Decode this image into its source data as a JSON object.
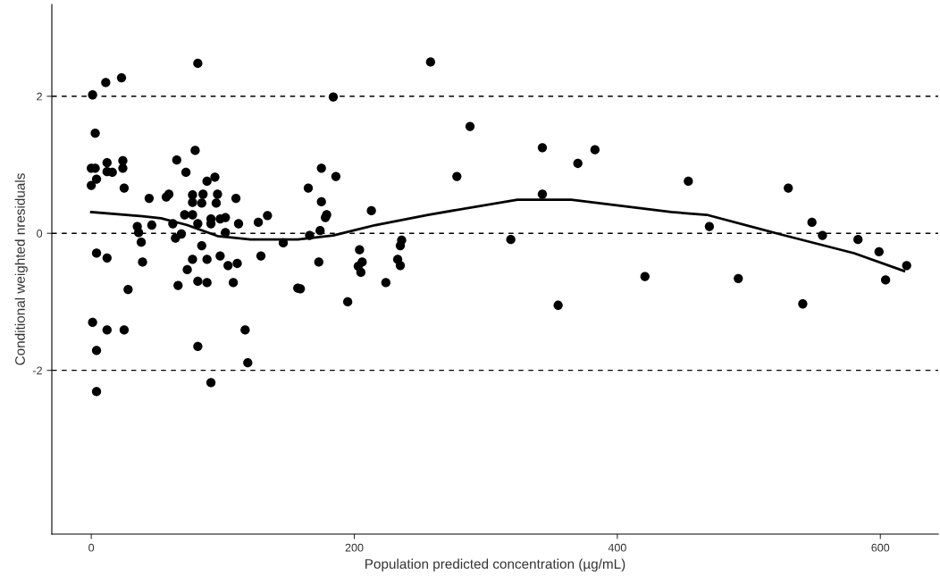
{
  "chart_data": {
    "type": "scatter",
    "xlabel": "Population predicted concentration (µg/mL)",
    "ylabel": "Conditional weighted nresiduals",
    "xlim": [
      -30,
      644
    ],
    "ylim": [
      -4.39,
      3.34
    ],
    "xticks": [
      0,
      200,
      400,
      600
    ],
    "yticks": [
      -2,
      0,
      2
    ],
    "grid": false,
    "legend": false,
    "marker": "circle",
    "ref_lines": [
      {
        "axis": "y",
        "value": 2,
        "color": "#000000",
        "line_style": "dashed"
      },
      {
        "axis": "y",
        "value": 0,
        "color": "#000000",
        "line_style": "dashed"
      },
      {
        "axis": "y",
        "value": -2,
        "color": "#000000",
        "line_style": "dashed"
      }
    ],
    "series": [
      {
        "color": "#000000",
        "x": [
          1,
          11,
          23,
          3,
          0,
          3,
          12,
          12,
          16,
          24,
          24,
          0,
          4,
          25,
          4,
          12,
          1,
          12,
          25,
          4,
          4,
          28,
          35,
          36,
          38,
          39,
          44,
          46,
          57,
          59,
          62,
          65,
          64,
          68.5,
          66,
          71,
          72,
          73,
          77,
          77,
          77,
          77,
          79,
          81,
          81,
          81,
          81,
          84,
          84,
          85,
          88,
          88,
          88,
          91,
          91,
          91,
          94,
          95,
          96,
          98,
          98,
          102,
          102,
          104,
          108,
          110,
          111,
          112,
          117,
          119,
          127,
          129,
          134,
          146,
          157,
          159,
          165,
          166,
          173,
          174,
          175,
          175,
          178,
          179,
          184,
          186,
          195,
          203,
          204,
          205,
          206,
          213,
          224,
          233,
          235,
          235,
          236,
          258,
          278,
          288,
          319,
          343,
          343,
          355,
          370,
          383,
          421,
          454,
          470,
          492,
          530,
          541,
          548,
          556,
          583,
          599,
          604,
          620
        ],
        "values": [
          2.02,
          2.2,
          2.27,
          1.46,
          0.95,
          0.95,
          1.03,
          0.9,
          0.89,
          1.06,
          0.95,
          0.7,
          0.79,
          0.66,
          -0.29,
          -0.36,
          -1.3,
          -1.41,
          -1.41,
          -1.71,
          -2.31,
          -0.82,
          0.1,
          0.01,
          -0.13,
          -0.42,
          0.51,
          0.12,
          0.53,
          0.57,
          0.14,
          1.07,
          -0.07,
          -0.01,
          -0.76,
          0.27,
          0.89,
          -0.53,
          0.27,
          0.56,
          0.45,
          -0.38,
          1.21,
          2.48,
          0.14,
          -0.7,
          -1.65,
          0.44,
          -0.18,
          0.57,
          0.76,
          -0.38,
          -0.72,
          0.14,
          -2.18,
          0.21,
          0.82,
          0.44,
          0.57,
          0.21,
          -0.33,
          0.23,
          0.01,
          -0.47,
          -0.72,
          0.51,
          -0.44,
          0.14,
          -1.41,
          -1.89,
          0.16,
          -0.33,
          0.26,
          -0.14,
          -0.8,
          -0.81,
          0.66,
          -0.03,
          -0.42,
          0.04,
          0.95,
          0.46,
          0.23,
          0.27,
          1.99,
          0.83,
          -1.0,
          -0.48,
          -0.24,
          -0.57,
          -0.42,
          0.33,
          -0.72,
          -0.38,
          -0.18,
          -0.47,
          -0.1,
          2.5,
          0.83,
          1.56,
          -0.09,
          1.25,
          0.57,
          -1.05,
          1.02,
          1.22,
          -0.63,
          0.76,
          0.1,
          -0.66,
          0.66,
          -1.03,
          0.16,
          -0.03,
          -0.09,
          -0.27,
          -0.68,
          -0.47
        ]
      },
      {
        "type": "line",
        "color": "#000000",
        "marker": "none",
        "x": [
          0,
          39,
          53,
          73,
          96,
          121,
          157,
          184,
          216,
          256,
          324,
          365,
          441,
          468,
          523,
          580,
          618
        ],
        "values": [
          0.31,
          0.25,
          0.22,
          0.12,
          -0.04,
          -0.09,
          -0.09,
          -0.03,
          0.12,
          0.27,
          0.49,
          0.49,
          0.31,
          0.27,
          -0.01,
          -0.29,
          -0.55
        ]
      }
    ]
  }
}
